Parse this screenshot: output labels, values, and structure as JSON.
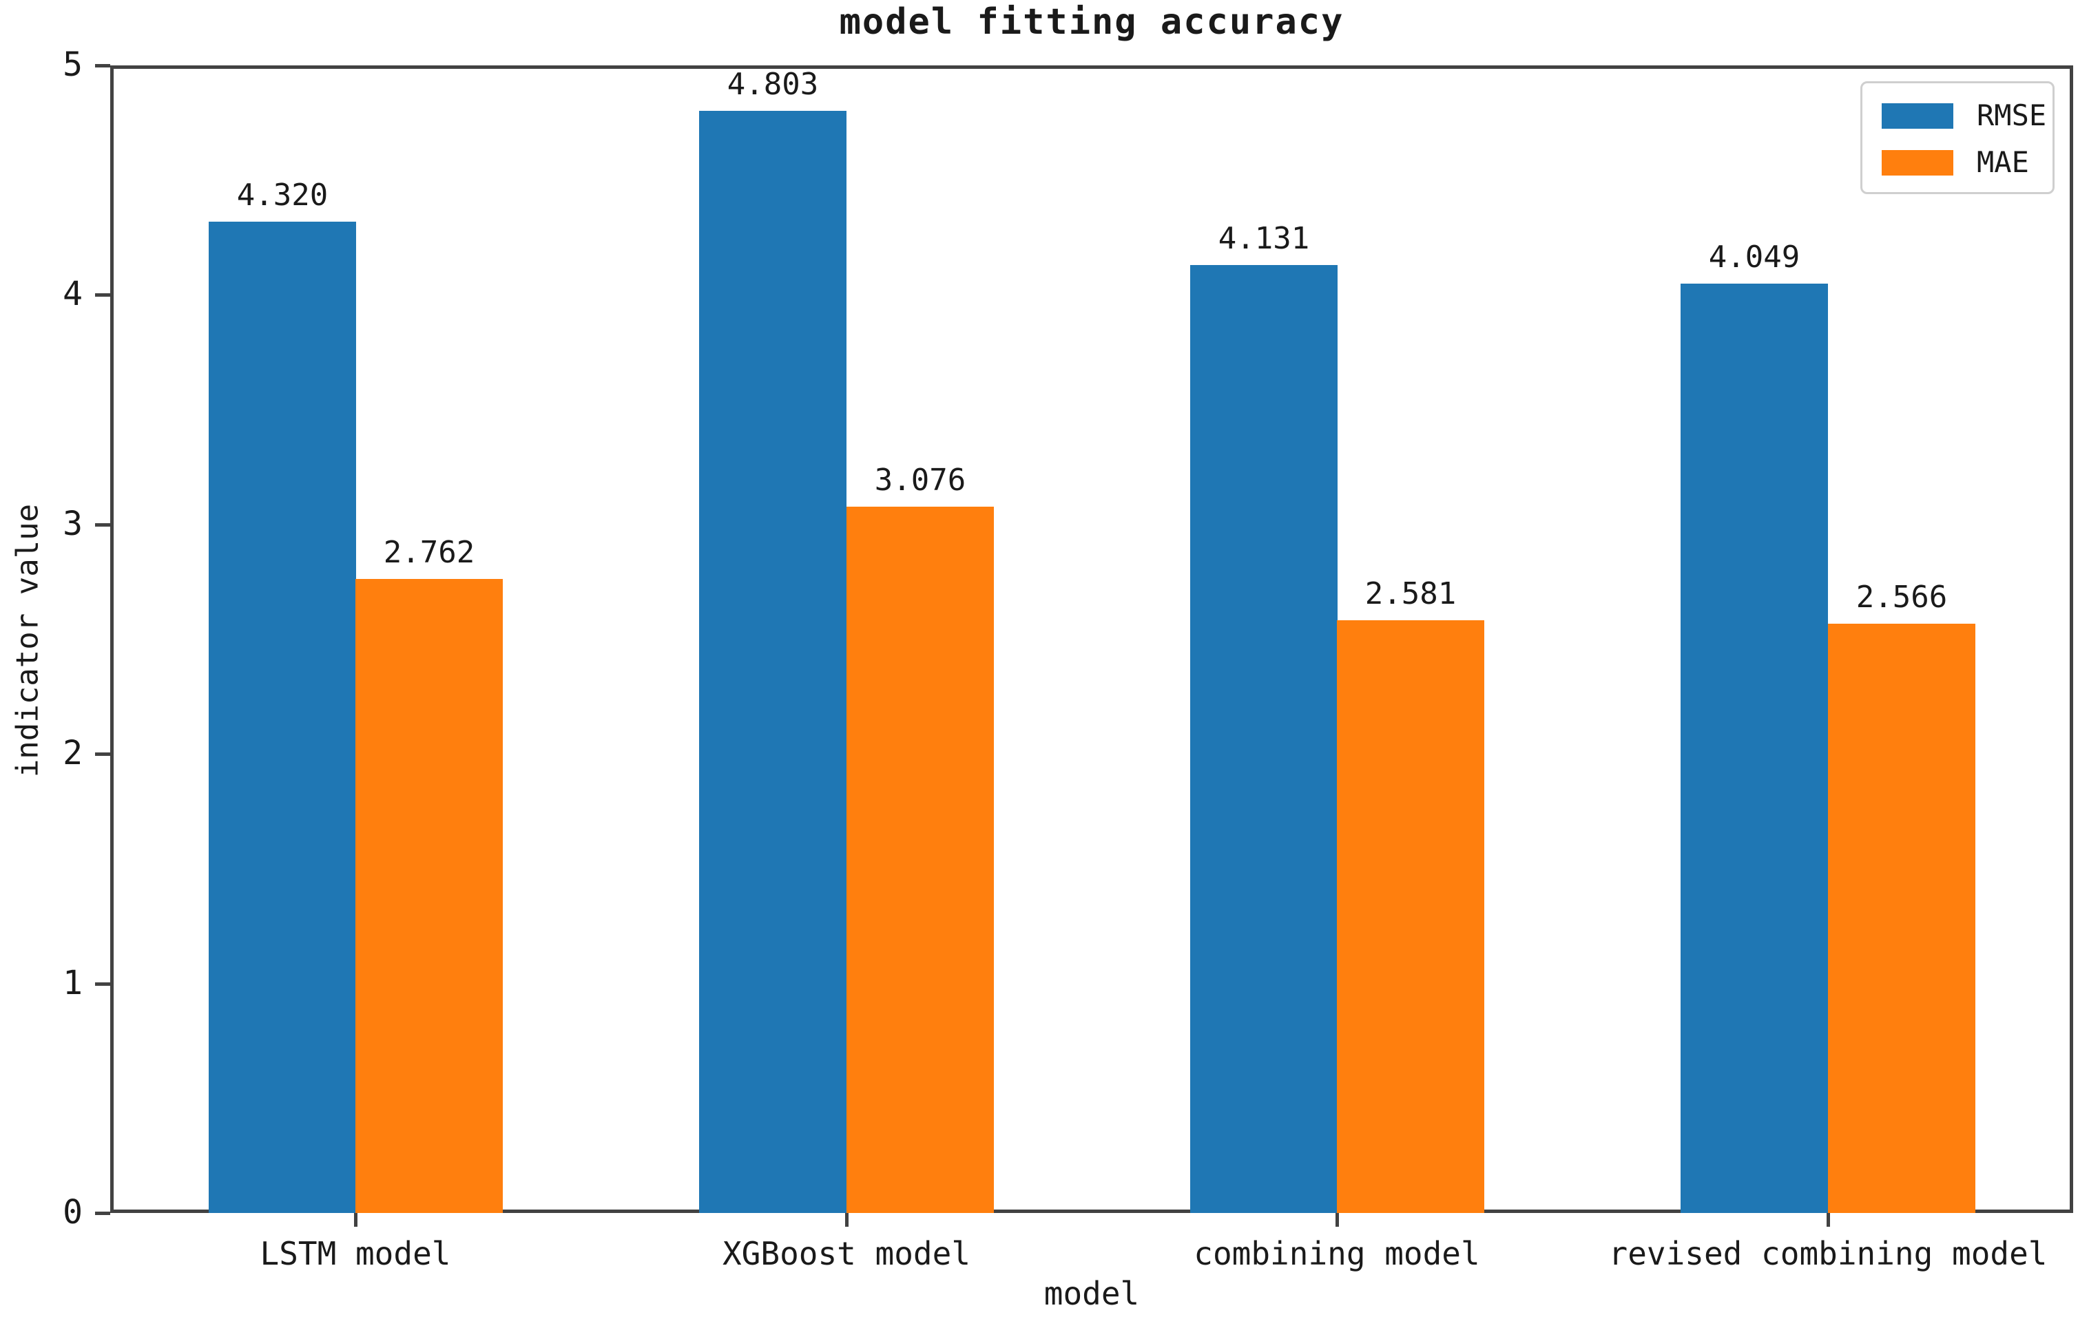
{
  "chart_data": {
    "type": "bar",
    "title": "model fitting accuracy",
    "xlabel": "model",
    "ylabel": "indicator value",
    "categories": [
      "LSTM model",
      "XGBoost model",
      "combining model",
      "revised combining model"
    ],
    "series": [
      {
        "name": "RMSE",
        "color": "#1f77b4",
        "values": [
          4.32,
          4.803,
          4.131,
          4.049
        ],
        "value_labels": [
          "4.320",
          "4.803",
          "4.131",
          "4.049"
        ]
      },
      {
        "name": "MAE",
        "color": "#ff7f0e",
        "values": [
          2.762,
          3.076,
          2.581,
          2.566
        ],
        "value_labels": [
          "2.762",
          "3.076",
          "2.581",
          "2.566"
        ]
      }
    ],
    "ylim": [
      0,
      5
    ],
    "yticks": [
      "0",
      "1",
      "2",
      "3",
      "4",
      "5"
    ],
    "grid": false,
    "legend_position": "upper right",
    "bar_width_fraction": 0.3
  },
  "colors": {
    "spine": "#424242",
    "text": "#1a1a1a",
    "legend_border": "#cfcfcf",
    "background": "#ffffff",
    "rmse_bar": "#1f77b4",
    "mae_bar": "#ff7f0e"
  }
}
